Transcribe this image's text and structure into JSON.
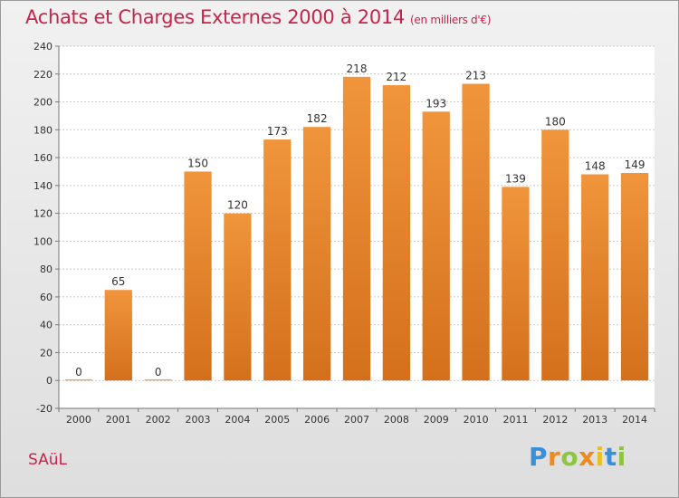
{
  "chart_data": {
    "type": "bar",
    "title": "Achats et Charges Externes 2000 à 2014",
    "unit": "(en milliers d'€)",
    "categories": [
      "2000",
      "2001",
      "2002",
      "2003",
      "2004",
      "2005",
      "2006",
      "2007",
      "2008",
      "2009",
      "2010",
      "2011",
      "2012",
      "2013",
      "2014"
    ],
    "values": [
      0,
      65,
      0,
      150,
      120,
      173,
      182,
      218,
      212,
      193,
      213,
      139,
      180,
      148,
      149
    ],
    "xlabel": "",
    "ylabel": "",
    "ylim": [
      -20,
      240
    ],
    "yticks": [
      -20,
      0,
      20,
      40,
      60,
      80,
      100,
      120,
      140,
      160,
      180,
      200,
      220,
      240
    ],
    "grid": true,
    "legend": "none",
    "bar_color": "#f0953c",
    "bar_color_dark": "#d4701c"
  },
  "commune": "SAüL",
  "logo": {
    "letters": [
      "P",
      "r",
      "o",
      "x",
      "i",
      "t",
      "i"
    ],
    "colors": [
      "#3a8fd8",
      "#f08a1e",
      "#8cc63f",
      "#f08a1e",
      "#e8c020",
      "#3a8fd8",
      "#8cc63f"
    ]
  },
  "colors": {
    "title": "#c8234a",
    "grid": "#c8c8c8",
    "axis": "#777777"
  }
}
